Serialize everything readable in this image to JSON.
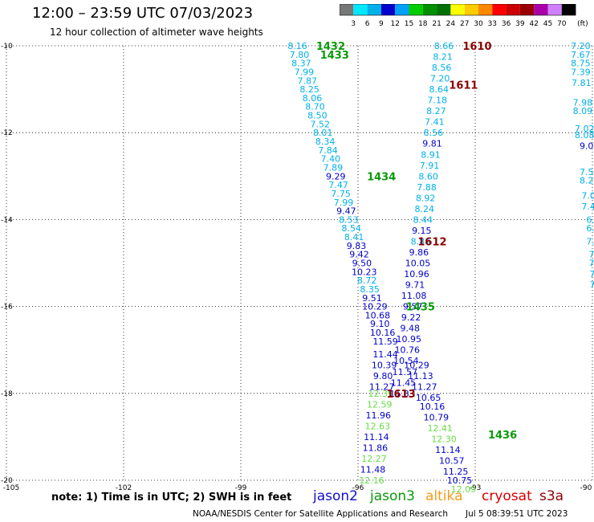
{
  "title": "12:00 – 23:59 UTC 07/03/2023",
  "subtitle": "12 hour collection of altimeter wave heights",
  "note": "note:  1) Time is in UTC; 2) SWH is in feet",
  "credit": "NOAA/NESDIS Center for Satellite Applications and Research",
  "credit_date": "Jul  5 08:39:51 UTC 2023",
  "missions": [
    {
      "name": "jason2",
      "color": "#1010c8"
    },
    {
      "name": "jason3",
      "color": "#0a9a0a"
    },
    {
      "name": "altika",
      "color": "#f59b1c"
    },
    {
      "name": "cryosat",
      "color": "#d40000"
    },
    {
      "name": "s3a",
      "color": "#8b0000"
    }
  ],
  "color_scale": {
    "unit": "(ft)",
    "thresholds": [
      "3",
      "6",
      "9",
      "12",
      "15",
      "18",
      "21",
      "24",
      "27",
      "30",
      "33",
      "36",
      "39",
      "42",
      "45",
      "70"
    ],
    "colors": [
      "#777777",
      "#00e8ff",
      "#00b0e8",
      "#0000cc",
      "#00a0ff",
      "#00cc00",
      "#009000",
      "#007000",
      "#ffff00",
      "#ffcc00",
      "#ff8800",
      "#ff0000",
      "#cc0000",
      "#990000",
      "#aa00aa",
      "#d080ff",
      "#000000"
    ]
  },
  "chart_data": {
    "type": "scatter",
    "title": "12:00 – 23:59 UTC 07/03/2023",
    "subtitle": "12 hour collection of altimeter wave heights",
    "xlim": [
      -105,
      -90
    ],
    "ylim": [
      -20,
      -10
    ],
    "x_ticks": [
      "-105",
      "-102",
      "-99",
      "-96",
      "-93",
      "-90"
    ],
    "y_ticks": [
      "-10",
      "-12",
      "-14",
      "-16",
      "-18",
      "-20"
    ],
    "grid": true,
    "track_labels": [
      {
        "text": "1432",
        "x": -96.7,
        "y": -10.0,
        "color": "#0a9a0a"
      },
      {
        "text": "1433",
        "x": -96.6,
        "y": -10.2,
        "color": "#0a9a0a"
      },
      {
        "text": "1434",
        "x": -95.4,
        "y": -13.0,
        "color": "#0a9a0a"
      },
      {
        "text": "1435",
        "x": -94.4,
        "y": -16.0,
        "color": "#0a9a0a"
      },
      {
        "text": "1436",
        "x": -92.3,
        "y": -18.95,
        "color": "#0a9a0a"
      },
      {
        "text": "1610",
        "x": -92.95,
        "y": -10.0,
        "color": "#8b0000"
      },
      {
        "text": "1611",
        "x": -93.3,
        "y": -10.9,
        "color": "#8b0000"
      },
      {
        "text": "1612",
        "x": -94.1,
        "y": -14.5,
        "color": "#8b0000"
      },
      {
        "text": "1613",
        "x": -94.9,
        "y": -18.0,
        "color": "#8b0000"
      }
    ],
    "series": [
      {
        "name": "jason3",
        "points": [
          {
            "x": -97.55,
            "y": -10.0,
            "v": "8.16",
            "c": "#00b0e8"
          },
          {
            "x": -97.5,
            "y": -10.2,
            "v": "7.80",
            "c": "#00b0e8"
          },
          {
            "x": -97.45,
            "y": -10.4,
            "v": "8.37",
            "c": "#00b0e8"
          },
          {
            "x": -97.38,
            "y": -10.6,
            "v": "7.99",
            "c": "#00b0e8"
          },
          {
            "x": -97.3,
            "y": -10.8,
            "v": "7.87",
            "c": "#00b0e8"
          },
          {
            "x": -97.24,
            "y": -11.0,
            "v": "8.25",
            "c": "#00b0e8"
          },
          {
            "x": -97.17,
            "y": -11.2,
            "v": "8.06",
            "c": "#00b0e8"
          },
          {
            "x": -97.1,
            "y": -11.4,
            "v": "8.70",
            "c": "#00b0e8"
          },
          {
            "x": -97.04,
            "y": -11.6,
            "v": "8.50",
            "c": "#00b0e8"
          },
          {
            "x": -96.97,
            "y": -11.8,
            "v": "7.52",
            "c": "#00b0e8"
          },
          {
            "x": -96.9,
            "y": -12.0,
            "v": "8.01",
            "c": "#00b0e8"
          },
          {
            "x": -96.84,
            "y": -12.2,
            "v": "8.34",
            "c": "#00b0e8"
          },
          {
            "x": -96.77,
            "y": -12.4,
            "v": "7.84",
            "c": "#00b0e8"
          },
          {
            "x": -96.7,
            "y": -12.6,
            "v": "7.40",
            "c": "#00b0e8"
          },
          {
            "x": -96.64,
            "y": -12.8,
            "v": "7.89",
            "c": "#00b0e8"
          },
          {
            "x": -96.57,
            "y": -13.0,
            "v": "9.29",
            "c": "#0000cc"
          },
          {
            "x": -96.5,
            "y": -13.2,
            "v": "7.47",
            "c": "#00b0e8"
          },
          {
            "x": -96.44,
            "y": -13.4,
            "v": "7.75",
            "c": "#00b0e8"
          },
          {
            "x": -96.37,
            "y": -13.6,
            "v": "7.99",
            "c": "#00b0e8"
          },
          {
            "x": -96.3,
            "y": -13.8,
            "v": "9.47",
            "c": "#0000cc"
          },
          {
            "x": -96.24,
            "y": -14.0,
            "v": "8.53",
            "c": "#00b0e8"
          },
          {
            "x": -96.17,
            "y": -14.2,
            "v": "8.54",
            "c": "#00b0e8"
          },
          {
            "x": -96.1,
            "y": -14.4,
            "v": "8.41",
            "c": "#00b0e8"
          },
          {
            "x": -96.04,
            "y": -14.6,
            "v": "9.83",
            "c": "#0000cc"
          },
          {
            "x": -95.97,
            "y": -14.8,
            "v": "9.42",
            "c": "#0000cc"
          },
          {
            "x": -95.9,
            "y": -15.0,
            "v": "9.50",
            "c": "#0000cc"
          },
          {
            "x": -95.84,
            "y": -15.2,
            "v": "10.23",
            "c": "#0000cc"
          },
          {
            "x": -95.77,
            "y": -15.4,
            "v": "8.72",
            "c": "#00b0e8"
          },
          {
            "x": -95.7,
            "y": -15.6,
            "v": "8.35",
            "c": "#00b0e8"
          },
          {
            "x": -95.64,
            "y": -15.8,
            "v": "9.51",
            "c": "#0000cc"
          },
          {
            "x": -95.57,
            "y": -16.0,
            "v": "10.29",
            "c": "#0000cc"
          },
          {
            "x": -95.5,
            "y": -16.2,
            "v": "10.68",
            "c": "#0000cc"
          },
          {
            "x": -95.44,
            "y": -16.4,
            "v": "9.10",
            "c": "#0000cc"
          },
          {
            "x": -95.37,
            "y": -16.6,
            "v": "10.16",
            "c": "#0000cc"
          },
          {
            "x": -95.3,
            "y": -16.8,
            "v": "11.59",
            "c": "#0000cc"
          },
          {
            "x": -95.3,
            "y": -17.1,
            "v": "11.44",
            "c": "#0000cc"
          },
          {
            "x": -95.33,
            "y": -17.35,
            "v": "10.39",
            "c": "#0000cc"
          },
          {
            "x": -95.36,
            "y": -17.6,
            "v": "9.80",
            "c": "#0000cc"
          },
          {
            "x": -95.39,
            "y": -17.85,
            "v": "11.27",
            "c": "#0000cc"
          },
          {
            "x": -95.42,
            "y": -18.0,
            "v": "12.39",
            "c": "#66dd44"
          },
          {
            "x": -95.45,
            "y": -18.25,
            "v": "12.59",
            "c": "#66dd44"
          },
          {
            "x": -95.48,
            "y": -18.5,
            "v": "11.96",
            "c": "#0000cc"
          },
          {
            "x": -95.5,
            "y": -18.75,
            "v": "12.63",
            "c": "#66dd44"
          },
          {
            "x": -95.53,
            "y": -19.0,
            "v": "11.14",
            "c": "#0000cc"
          },
          {
            "x": -95.56,
            "y": -19.25,
            "v": "11.86",
            "c": "#0000cc"
          },
          {
            "x": -95.59,
            "y": -19.5,
            "v": "12.27",
            "c": "#66dd44"
          },
          {
            "x": -95.62,
            "y": -19.75,
            "v": "11.48",
            "c": "#0000cc"
          },
          {
            "x": -95.65,
            "y": -20.0,
            "v": "12.16",
            "c": "#66dd44"
          }
        ]
      },
      {
        "name": "s3a",
        "points": [
          {
            "x": -93.8,
            "y": -10.0,
            "v": "8.66",
            "c": "#00b0e8"
          },
          {
            "x": -93.83,
            "y": -10.25,
            "v": "8.21",
            "c": "#00b0e8"
          },
          {
            "x": -93.86,
            "y": -10.5,
            "v": "8.56",
            "c": "#00b0e8"
          },
          {
            "x": -93.9,
            "y": -10.75,
            "v": "7.20",
            "c": "#00b0e8"
          },
          {
            "x": -93.93,
            "y": -11.0,
            "v": "8.64",
            "c": "#00b0e8"
          },
          {
            "x": -93.97,
            "y": -11.25,
            "v": "7.18",
            "c": "#00b0e8"
          },
          {
            "x": -94.0,
            "y": -11.5,
            "v": "8.27",
            "c": "#00b0e8"
          },
          {
            "x": -94.04,
            "y": -11.75,
            "v": "7.41",
            "c": "#00b0e8"
          },
          {
            "x": -94.07,
            "y": -12.0,
            "v": "8.56",
            "c": "#00b0e8"
          },
          {
            "x": -94.1,
            "y": -12.25,
            "v": "9.81",
            "c": "#0000cc"
          },
          {
            "x": -94.14,
            "y": -12.5,
            "v": "8.91",
            "c": "#00b0e8"
          },
          {
            "x": -94.17,
            "y": -12.75,
            "v": "7.91",
            "c": "#00b0e8"
          },
          {
            "x": -94.2,
            "y": -13.0,
            "v": "8.60",
            "c": "#00b0e8"
          },
          {
            "x": -94.24,
            "y": -13.25,
            "v": "7.88",
            "c": "#00b0e8"
          },
          {
            "x": -94.27,
            "y": -13.5,
            "v": "8.92",
            "c": "#00b0e8"
          },
          {
            "x": -94.3,
            "y": -13.75,
            "v": "8.24",
            "c": "#00b0e8"
          },
          {
            "x": -94.34,
            "y": -14.0,
            "v": "8.44",
            "c": "#00b0e8"
          },
          {
            "x": -94.37,
            "y": -14.25,
            "v": "9.15",
            "c": "#0000cc"
          },
          {
            "x": -94.4,
            "y": -14.5,
            "v": "8.88",
            "c": "#00b0e8"
          },
          {
            "x": -94.44,
            "y": -14.75,
            "v": "9.86",
            "c": "#0000cc"
          },
          {
            "x": -94.47,
            "y": -15.0,
            "v": "10.05",
            "c": "#0000cc"
          },
          {
            "x": -94.5,
            "y": -15.25,
            "v": "10.96",
            "c": "#0000cc"
          },
          {
            "x": -94.54,
            "y": -15.5,
            "v": "9.71",
            "c": "#0000cc"
          },
          {
            "x": -94.57,
            "y": -15.75,
            "v": "11.08",
            "c": "#0000cc"
          },
          {
            "x": -94.6,
            "y": -16.0,
            "v": "9.57",
            "c": "#0000cc"
          },
          {
            "x": -94.64,
            "y": -16.25,
            "v": "9.22",
            "c": "#0000cc"
          },
          {
            "x": -94.67,
            "y": -16.5,
            "v": "9.48",
            "c": "#0000cc"
          },
          {
            "x": -94.7,
            "y": -16.75,
            "v": "10.95",
            "c": "#0000cc"
          },
          {
            "x": -94.74,
            "y": -17.0,
            "v": "10.76",
            "c": "#0000cc"
          },
          {
            "x": -94.77,
            "y": -17.25,
            "v": "10.54",
            "c": "#0000cc"
          },
          {
            "x": -94.8,
            "y": -17.5,
            "v": "11.57",
            "c": "#0000cc"
          },
          {
            "x": -94.84,
            "y": -17.75,
            "v": "11.45",
            "c": "#0000cc"
          },
          {
            "x": -94.87,
            "y": -18.0,
            "v": "11.33",
            "c": "#0000cc"
          },
          {
            "x": -94.5,
            "y": -17.35,
            "v": "10.29",
            "c": "#0000cc"
          },
          {
            "x": -94.4,
            "y": -17.6,
            "v": "11.13",
            "c": "#0000cc"
          },
          {
            "x": -94.3,
            "y": -17.85,
            "v": "11.27",
            "c": "#0000cc"
          },
          {
            "x": -94.2,
            "y": -18.1,
            "v": "10.65",
            "c": "#0000cc"
          },
          {
            "x": -94.1,
            "y": -18.3,
            "v": "10.16",
            "c": "#0000cc"
          },
          {
            "x": -94.0,
            "y": -18.55,
            "v": "10.79",
            "c": "#0000cc"
          },
          {
            "x": -93.9,
            "y": -18.8,
            "v": "12.41",
            "c": "#66dd44"
          },
          {
            "x": -93.8,
            "y": -19.05,
            "v": "12.30",
            "c": "#66dd44"
          },
          {
            "x": -93.7,
            "y": -19.3,
            "v": "11.14",
            "c": "#0000cc"
          },
          {
            "x": -93.6,
            "y": -19.55,
            "v": "10.57",
            "c": "#0000cc"
          },
          {
            "x": -93.5,
            "y": -19.8,
            "v": "11.25",
            "c": "#0000cc"
          },
          {
            "x": -93.4,
            "y": -20.0,
            "v": "10.75",
            "c": "#0000cc"
          },
          {
            "x": -93.3,
            "y": -20.2,
            "v": "12.09",
            "c": "#66dd44"
          }
        ]
      },
      {
        "name": "edge",
        "points": [
          {
            "x": -90.3,
            "y": -10.0,
            "v": "7.20",
            "c": "#00b0e8"
          },
          {
            "x": -90.3,
            "y": -10.2,
            "v": "7.67",
            "c": "#00b0e8"
          },
          {
            "x": -90.3,
            "y": -10.4,
            "v": "8.75",
            "c": "#00b0e8"
          },
          {
            "x": -90.3,
            "y": -10.6,
            "v": "7.39",
            "c": "#00b0e8"
          },
          {
            "x": -90.28,
            "y": -10.85,
            "v": "7.81",
            "c": "#00b0e8"
          },
          {
            "x": -90.25,
            "y": -11.3,
            "v": "7.98",
            "c": "#00b0e8"
          },
          {
            "x": -90.25,
            "y": -11.5,
            "v": "8.09",
            "c": "#00b0e8"
          },
          {
            "x": -90.2,
            "y": -11.9,
            "v": "7.02",
            "c": "#00b0e8"
          },
          {
            "x": -90.2,
            "y": -12.05,
            "v": "8.08",
            "c": "#00b0e8"
          },
          {
            "x": -90.15,
            "y": -12.3,
            "v": "9.0",
            "c": "#0000cc"
          },
          {
            "x": -90.15,
            "y": -12.9,
            "v": "7.5",
            "c": "#00b0e8"
          },
          {
            "x": -90.15,
            "y": -13.1,
            "v": "8.2",
            "c": "#00b0e8"
          },
          {
            "x": -90.1,
            "y": -13.45,
            "v": "7.0",
            "c": "#00b0e8"
          },
          {
            "x": -90.1,
            "y": -13.7,
            "v": "7.4",
            "c": "#00b0e8"
          },
          {
            "x": -90.05,
            "y": -14.0,
            "v": "6.",
            "c": "#00b0e8"
          },
          {
            "x": -90.05,
            "y": -14.2,
            "v": "6.",
            "c": "#00b0e8"
          },
          {
            "x": -90.05,
            "y": -14.5,
            "v": "7.",
            "c": "#00b0e8"
          },
          {
            "x": -90.02,
            "y": -14.8,
            "v": "7",
            "c": "#00b0e8"
          },
          {
            "x": -90.02,
            "y": -15.0,
            "v": "7",
            "c": "#00b0e8"
          },
          {
            "x": -90.0,
            "y": -15.25,
            "v": "7",
            "c": "#00b0e8"
          },
          {
            "x": -90.0,
            "y": -15.5,
            "v": "7",
            "c": "#00b0e8"
          }
        ]
      }
    ]
  }
}
